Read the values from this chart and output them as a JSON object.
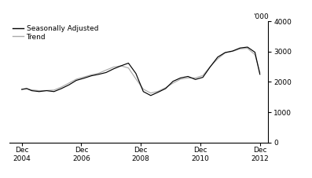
{
  "ylabel_right_top": "'000",
  "legend_labels": [
    "Seasonally Adjusted",
    "Trend"
  ],
  "legend_colors": [
    "#000000",
    "#aaaaaa"
  ],
  "x_tick_labels": [
    "Dec\n2004",
    "Dec\n2006",
    "Dec\n2008",
    "Dec\n2010",
    "Dec\n2012"
  ],
  "x_tick_positions": [
    2004.917,
    2006.917,
    2008.917,
    2010.917,
    2012.917
  ],
  "xlim": [
    2004.5,
    2013.2
  ],
  "ylim": [
    0,
    4000
  ],
  "yticks": [
    0,
    1000,
    2000,
    3000,
    4000
  ],
  "background_color": "#ffffff",
  "seasonally_adjusted_x": [
    2004.917,
    2005.083,
    2005.25,
    2005.5,
    2005.75,
    2006.0,
    2006.25,
    2006.5,
    2006.75,
    2007.0,
    2007.25,
    2007.5,
    2007.75,
    2008.0,
    2008.25,
    2008.5,
    2008.75,
    2009.0,
    2009.25,
    2009.5,
    2009.75,
    2010.0,
    2010.25,
    2010.5,
    2010.75,
    2011.0,
    2011.25,
    2011.5,
    2011.75,
    2012.0,
    2012.25,
    2012.5,
    2012.75,
    2012.917
  ],
  "seasonally_adjusted_y": [
    1750,
    1780,
    1710,
    1680,
    1710,
    1680,
    1780,
    1900,
    2050,
    2120,
    2200,
    2250,
    2310,
    2430,
    2530,
    2620,
    2280,
    1680,
    1550,
    1660,
    1780,
    2020,
    2130,
    2180,
    2080,
    2150,
    2500,
    2820,
    2970,
    3020,
    3120,
    3150,
    2980,
    2250
  ],
  "trend_x": [
    2004.917,
    2005.083,
    2005.25,
    2005.5,
    2005.75,
    2006.0,
    2006.25,
    2006.5,
    2006.75,
    2007.0,
    2007.25,
    2007.5,
    2007.75,
    2008.0,
    2008.25,
    2008.5,
    2008.75,
    2009.0,
    2009.25,
    2009.5,
    2009.75,
    2010.0,
    2010.25,
    2010.5,
    2010.75,
    2011.0,
    2011.25,
    2011.5,
    2011.75,
    2012.0,
    2012.25,
    2012.5,
    2012.75,
    2012.917
  ],
  "trend_y": [
    1760,
    1775,
    1735,
    1710,
    1715,
    1730,
    1830,
    1960,
    2090,
    2160,
    2230,
    2285,
    2390,
    2490,
    2530,
    2460,
    2100,
    1760,
    1630,
    1690,
    1810,
    1960,
    2090,
    2130,
    2130,
    2210,
    2510,
    2760,
    2960,
    3010,
    3090,
    3110,
    2900,
    2310
  ]
}
